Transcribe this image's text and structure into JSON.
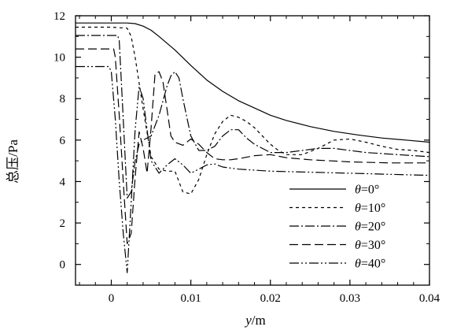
{
  "chart_data": {
    "type": "line",
    "xlabel_var": "y",
    "xlabel_unit": "/m",
    "ylabel": "总压/Pa",
    "xlim": [
      -0.0045,
      0.04
    ],
    "ylim": [
      -1,
      12
    ],
    "xticks": [
      0,
      0.01,
      0.02,
      0.03,
      0.04
    ],
    "xtick_labels": [
      "0",
      "0.01",
      "0.02",
      "0.03",
      "0.04"
    ],
    "yticks": [
      0,
      2,
      4,
      6,
      8,
      10,
      12
    ],
    "ytick_labels": [
      "0",
      "2",
      "4",
      "6",
      "8",
      "10",
      "12"
    ],
    "grid": false,
    "legend_position": "bottom-right",
    "series": [
      {
        "name": "θ=0°",
        "legend_var": "θ",
        "legend_value": "=0°",
        "dash": "solid",
        "x": [
          -0.0045,
          0.0,
          0.002,
          0.003,
          0.004,
          0.005,
          0.006,
          0.008,
          0.01,
          0.012,
          0.014,
          0.016,
          0.018,
          0.02,
          0.022,
          0.025,
          0.028,
          0.031,
          0.034,
          0.037,
          0.04
        ],
        "y": [
          11.65,
          11.65,
          11.65,
          11.62,
          11.5,
          11.3,
          11.0,
          10.35,
          9.6,
          8.9,
          8.35,
          7.9,
          7.55,
          7.2,
          6.95,
          6.65,
          6.42,
          6.25,
          6.1,
          6.0,
          5.9
        ]
      },
      {
        "name": "θ=10°",
        "legend_var": "θ",
        "legend_value": "=10°",
        "dash": "4,4",
        "x": [
          -0.0045,
          0.0,
          0.002,
          0.0025,
          0.003,
          0.004,
          0.005,
          0.006,
          0.007,
          0.008,
          0.009,
          0.01,
          0.011,
          0.012,
          0.013,
          0.014,
          0.015,
          0.016,
          0.017,
          0.018,
          0.019,
          0.02,
          0.021,
          0.022,
          0.024,
          0.026,
          0.028,
          0.03,
          0.032,
          0.034,
          0.036,
          0.038,
          0.04
        ],
        "y": [
          11.45,
          11.45,
          11.4,
          11.0,
          10.0,
          7.5,
          5.2,
          4.6,
          4.5,
          4.5,
          3.5,
          3.4,
          4.1,
          5.3,
          6.3,
          6.9,
          7.2,
          7.1,
          6.9,
          6.6,
          6.2,
          5.8,
          5.5,
          5.3,
          5.3,
          5.6,
          6.0,
          6.05,
          5.9,
          5.7,
          5.55,
          5.5,
          5.4
        ]
      },
      {
        "name": "θ=20°",
        "legend_var": "θ",
        "legend_value": "=20°",
        "dash": "12,3,2,3",
        "x": [
          -0.0045,
          0.0,
          0.0008,
          0.001,
          0.0015,
          0.002,
          0.0025,
          0.003,
          0.0035,
          0.004,
          0.005,
          0.006,
          0.007,
          0.0075,
          0.008,
          0.0085,
          0.009,
          0.01,
          0.011,
          0.012,
          0.013,
          0.014,
          0.015,
          0.016,
          0.017,
          0.018,
          0.019,
          0.02,
          0.022,
          0.024,
          0.026,
          0.028,
          0.03,
          0.032,
          0.034,
          0.036,
          0.038,
          0.04
        ],
        "y": [
          11.05,
          11.05,
          11.05,
          10.8,
          7.0,
          3.2,
          3.5,
          5.0,
          5.8,
          6.0,
          6.2,
          7.2,
          8.6,
          9.1,
          9.3,
          9.0,
          8.0,
          6.2,
          5.5,
          5.5,
          5.7,
          6.2,
          6.5,
          6.5,
          6.1,
          5.8,
          5.6,
          5.4,
          5.4,
          5.5,
          5.6,
          5.6,
          5.5,
          5.4,
          5.35,
          5.3,
          5.25,
          5.2
        ]
      },
      {
        "name": "θ=30°",
        "legend_var": "θ",
        "legend_value": "=30°",
        "dash": "11,5",
        "x": [
          -0.0045,
          0.0,
          0.0003,
          0.0005,
          0.001,
          0.0015,
          0.002,
          0.0025,
          0.003,
          0.0035,
          0.004,
          0.0045,
          0.005,
          0.0055,
          0.006,
          0.0065,
          0.007,
          0.0075,
          0.008,
          0.009,
          0.01,
          0.011,
          0.012,
          0.013,
          0.014,
          0.015,
          0.016,
          0.018,
          0.02,
          0.022,
          0.025,
          0.03,
          0.035,
          0.04
        ],
        "y": [
          10.4,
          10.4,
          10.4,
          10.0,
          7.2,
          4.0,
          1.0,
          1.5,
          4.2,
          6.4,
          5.6,
          4.4,
          6.6,
          9.2,
          9.3,
          8.8,
          7.5,
          6.2,
          5.9,
          5.75,
          6.05,
          5.8,
          5.4,
          5.1,
          5.05,
          5.05,
          5.1,
          5.25,
          5.3,
          5.15,
          5.05,
          4.95,
          4.9,
          4.9
        ]
      },
      {
        "name": "θ=40°",
        "legend_var": "θ",
        "legend_value": "=40°",
        "dash": "12,3,2,3,2,3",
        "x": [
          -0.0045,
          -0.001,
          -0.0003,
          0.0,
          0.0005,
          0.001,
          0.0015,
          0.002,
          0.0025,
          0.003,
          0.0035,
          0.004,
          0.0045,
          0.005,
          0.006,
          0.007,
          0.008,
          0.009,
          0.01,
          0.011,
          0.012,
          0.013,
          0.014,
          0.016,
          0.018,
          0.02,
          0.025,
          0.03,
          0.035,
          0.04
        ],
        "y": [
          9.55,
          9.55,
          9.55,
          9.3,
          7.0,
          4.0,
          1.5,
          -0.4,
          3.0,
          6.5,
          8.6,
          8.0,
          6.5,
          5.0,
          4.4,
          4.8,
          5.1,
          4.8,
          4.4,
          4.6,
          4.8,
          4.85,
          4.7,
          4.6,
          4.55,
          4.5,
          4.45,
          4.4,
          4.35,
          4.3
        ]
      }
    ]
  }
}
